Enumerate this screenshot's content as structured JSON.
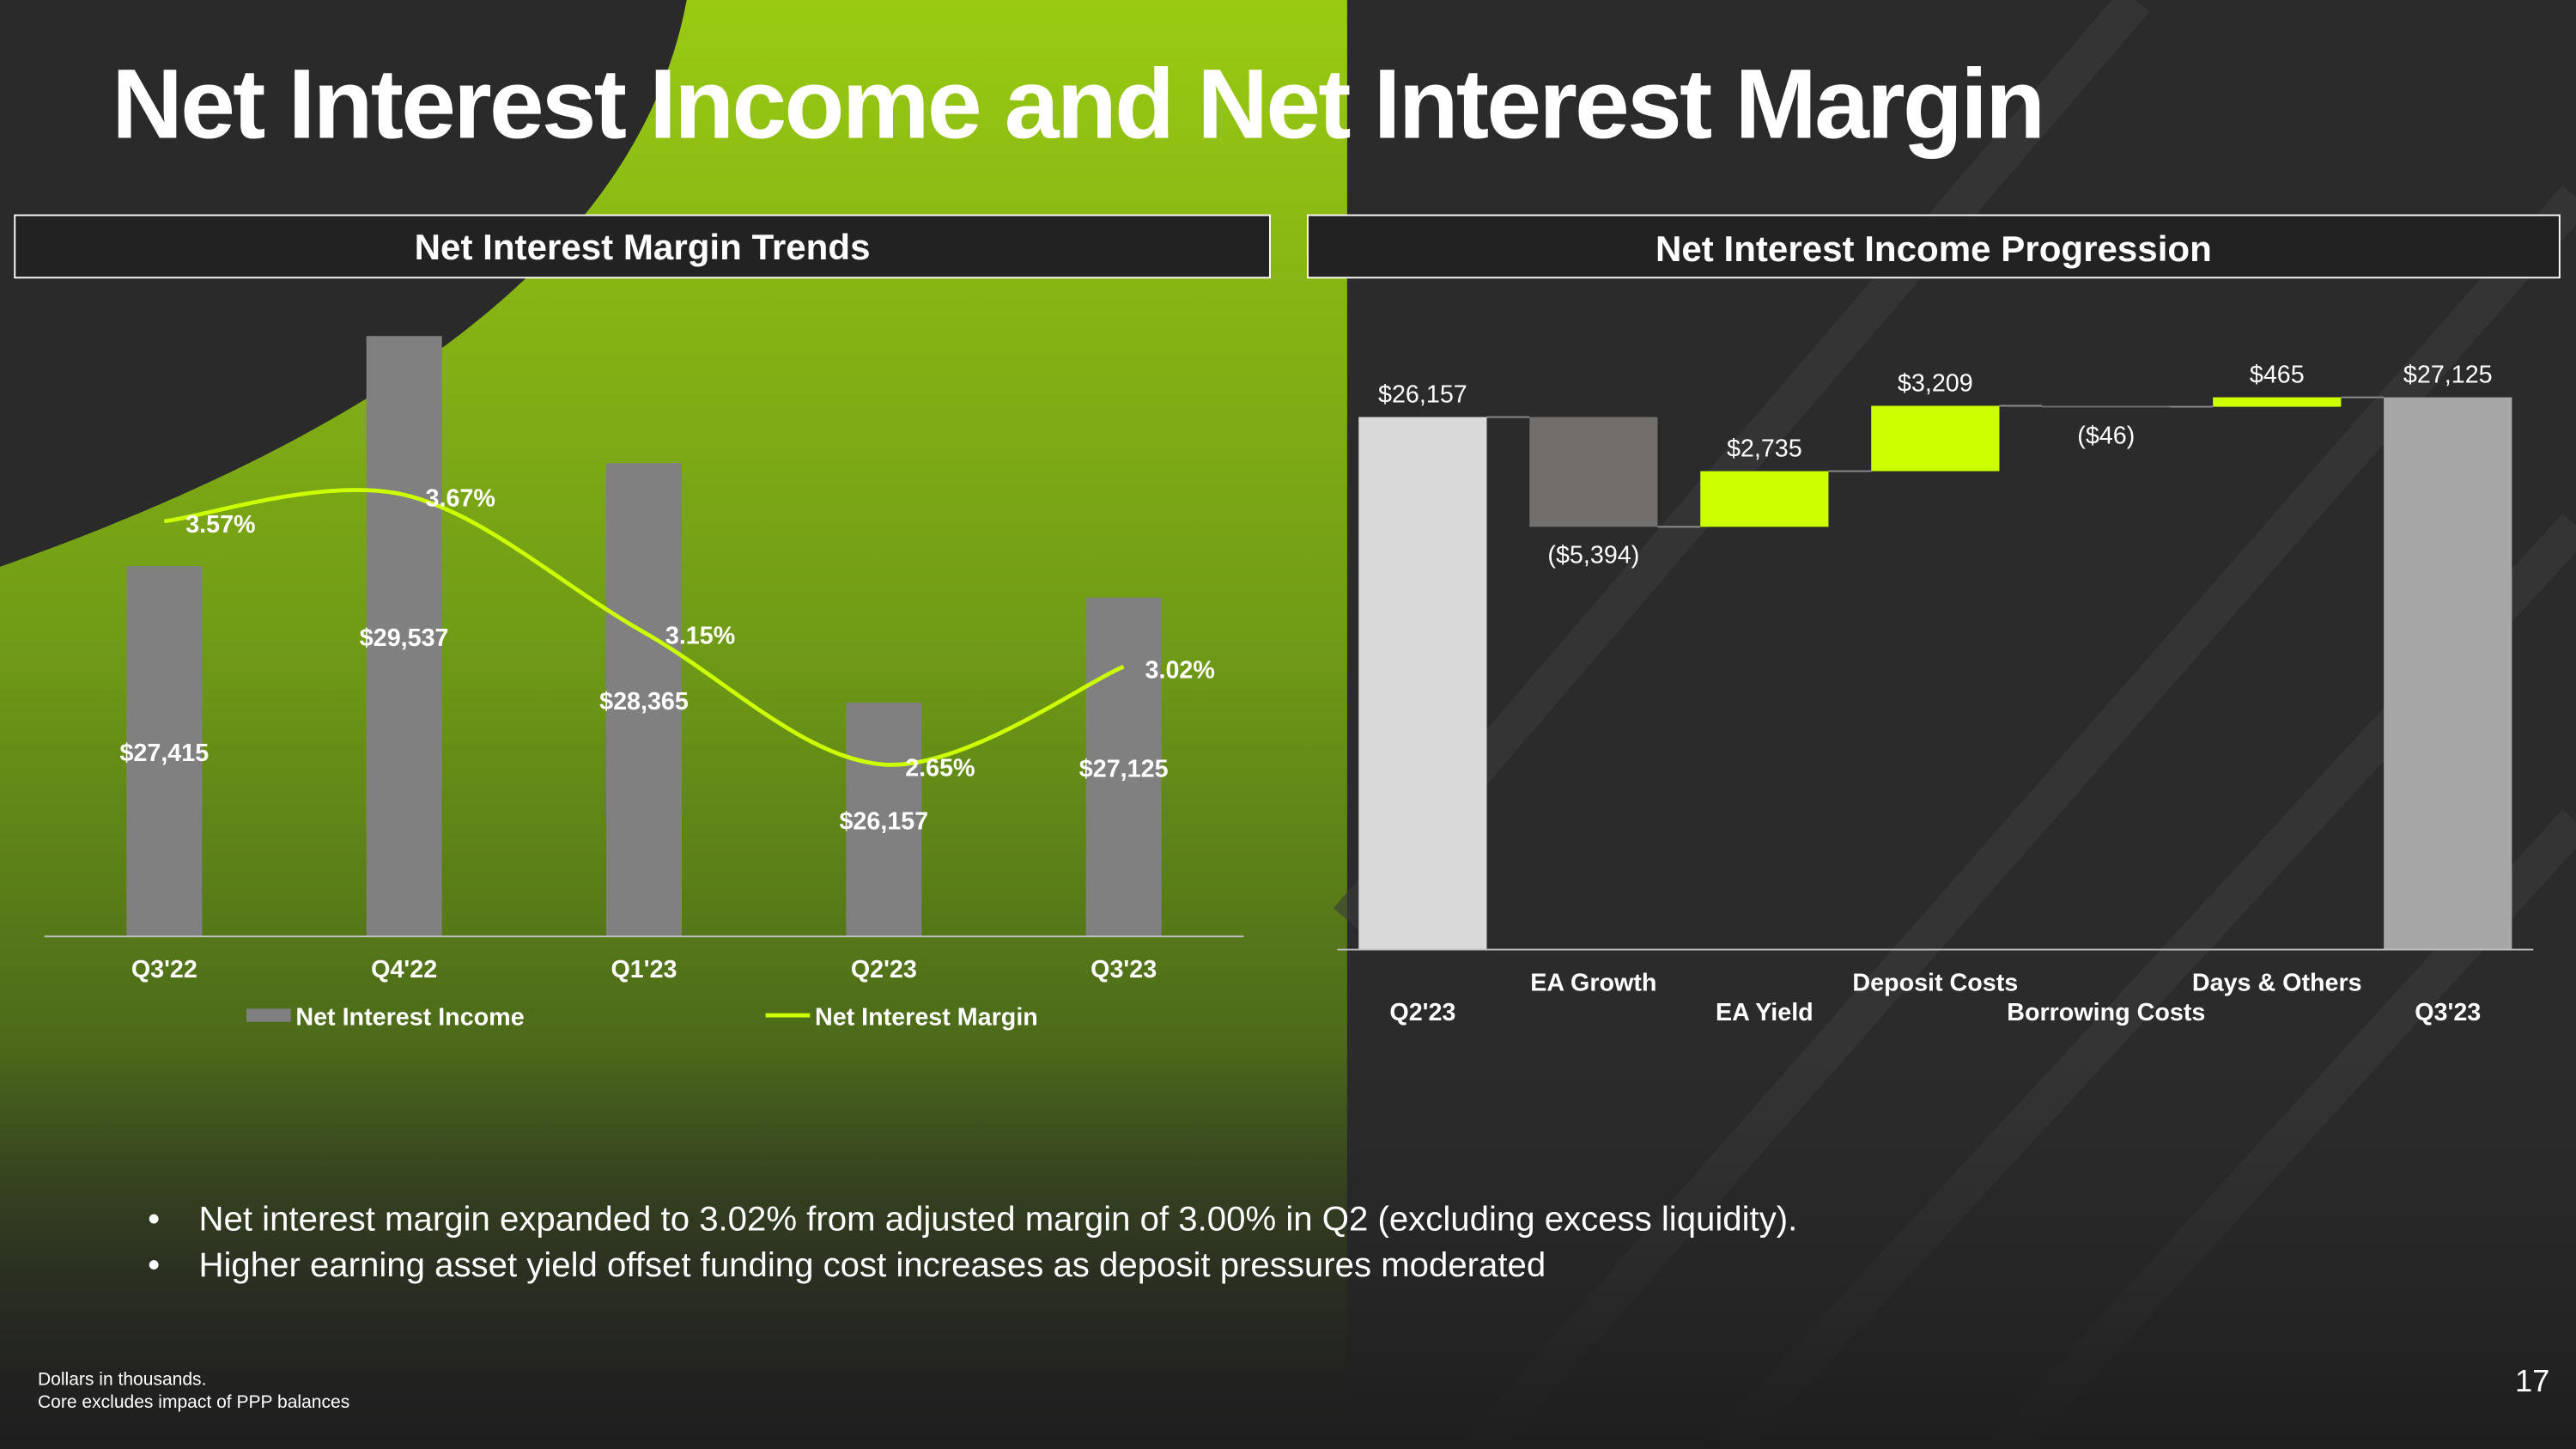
{
  "title": "Net Interest Income and Net Interest Margin",
  "chart_data": [
    {
      "type": "combo",
      "title": "Net Interest Margin Trends",
      "categories": [
        "Q3'22",
        "Q4'22",
        "Q1'23",
        "Q2'23",
        "Q3'23"
      ],
      "series": [
        {
          "name": "Net Interest Income",
          "type": "bar",
          "color": "#808080",
          "values": [
            27415,
            29537,
            28365,
            26157,
            27125
          ],
          "value_labels": [
            "$27,415",
            "$29,537",
            "$28,365",
            "$26,157",
            "$27,125"
          ]
        },
        {
          "name": "Net Interest Margin",
          "type": "line",
          "axis": "y2",
          "color": "#ccff00",
          "values": [
            3.57,
            3.67,
            3.15,
            2.65,
            3.02
          ],
          "value_labels": [
            "3.57%",
            "3.67%",
            "3.15%",
            "2.65%",
            "3.02%"
          ]
        }
      ],
      "ylim": [
        24000,
        30000
      ],
      "y2lim": [
        2.0,
        4.46
      ],
      "legend": "bottom"
    },
    {
      "type": "waterfall",
      "title": "Net Interest Income Progression",
      "categories": [
        "Q2'23",
        "EA Growth",
        "EA Yield",
        "Deposit Costs",
        "Borrowing Costs",
        "Days & Others",
        "Q3'23"
      ],
      "values": [
        26157,
        -5394,
        2735,
        3209,
        -46,
        465,
        27125
      ],
      "value_labels": [
        "$26,157",
        "($5,394)",
        "$2,735",
        "$3,209",
        "($46)",
        "$465",
        "$27,125"
      ],
      "is_total": [
        true,
        false,
        false,
        false,
        false,
        false,
        true
      ],
      "colors": [
        "#d9d9d9",
        "#726e6b",
        "#ccff00",
        "#ccff00",
        "#726e6b",
        "#ccff00",
        "#a6a6a6"
      ],
      "ylim": [
        0,
        28000
      ]
    }
  ],
  "bullets": [
    "Net interest margin expanded to 3.02% from adjusted margin of 3.00% in Q2 (excluding excess liquidity).",
    "Higher earning asset yield offset funding cost increases as deposit pressures moderated"
  ],
  "footnotes": [
    "Dollars in thousands.",
    "Core excludes impact of PPP balances"
  ],
  "page_number": "17"
}
